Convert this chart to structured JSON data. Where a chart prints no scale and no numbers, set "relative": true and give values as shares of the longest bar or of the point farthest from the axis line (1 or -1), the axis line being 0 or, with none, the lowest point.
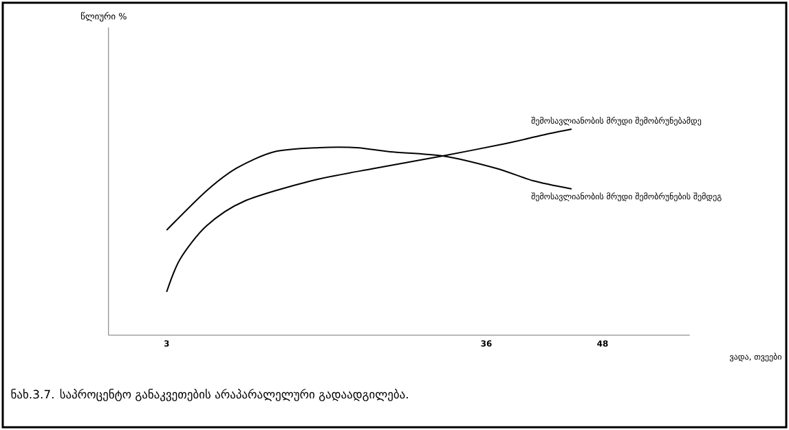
{
  "chart_data": {
    "type": "line",
    "relative": true,
    "xlabel": "ვადა, თვეები",
    "xlim": [
      -3,
      57
    ],
    "xticks": [
      3,
      36,
      48
    ],
    "grid": false,
    "marker": "none",
    "line_style": "solid",
    "annotations": [
      "წლიური %",
      "ნახ.3.7. საპროცენტო განაკვეთების არაპარალელური გადაადგილება."
    ],
    "series": [
      {
        "name": "შემოსავლიანობის მრუდი შემობრუნებამდე",
        "color": "#000000",
        "x": [
          3,
          4.4,
          7.1,
          11.0,
          18.0,
          24.5,
          31.5,
          38.0,
          41.7,
          44.8
        ],
        "values": [
          0.21,
          0.37,
          0.53,
          0.65,
          0.75,
          0.81,
          0.87,
          0.93,
          0.97,
          1
        ]
      },
      {
        "name": "შემოსავლიანობის მრუდი შემობრუნების შემდეგ",
        "color": "#000000",
        "x": [
          3,
          7.1,
          10.2,
          14.1,
          18.7,
          22.6,
          26.1,
          31.5,
          37.0,
          40.8,
          44.8
        ],
        "values": [
          0.51,
          0.7,
          0.81,
          0.89,
          0.91,
          0.91,
          0.89,
          0.87,
          0.81,
          0.75,
          0.71
        ]
      }
    ]
  }
}
